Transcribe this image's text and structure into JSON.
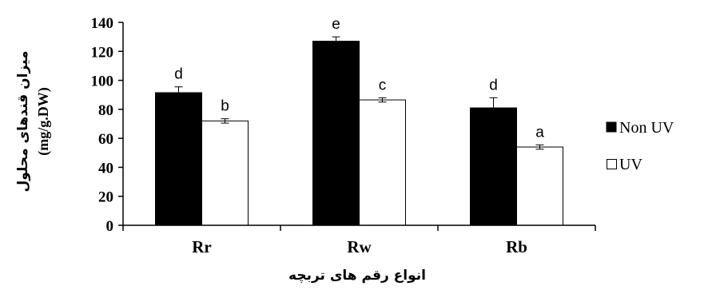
{
  "chart_data": {
    "type": "bar",
    "categories": [
      "Rr",
      "Rw",
      "Rb"
    ],
    "series": [
      {
        "name": "Non UV",
        "color": "#000000",
        "values": [
          91.5,
          127,
          81
        ],
        "errors": [
          4,
          3,
          7
        ],
        "significance": [
          "d",
          "e",
          "d"
        ]
      },
      {
        "name": "UV",
        "color": "#ffffff",
        "values": [
          72,
          86.5,
          54
        ],
        "errors": [
          1.5,
          1.5,
          1.5
        ],
        "significance": [
          "b",
          "c",
          "a"
        ]
      }
    ],
    "ylim": [
      0,
      140
    ],
    "yticks": [
      0,
      20,
      40,
      60,
      80,
      100,
      120,
      140
    ],
    "xlabel": "انواع رقم های تربچه",
    "ylabel": "میزان قندهای محلول",
    "ylabel_unit": "(mg/g.DW)",
    "grid": false,
    "legend_position": "right"
  }
}
